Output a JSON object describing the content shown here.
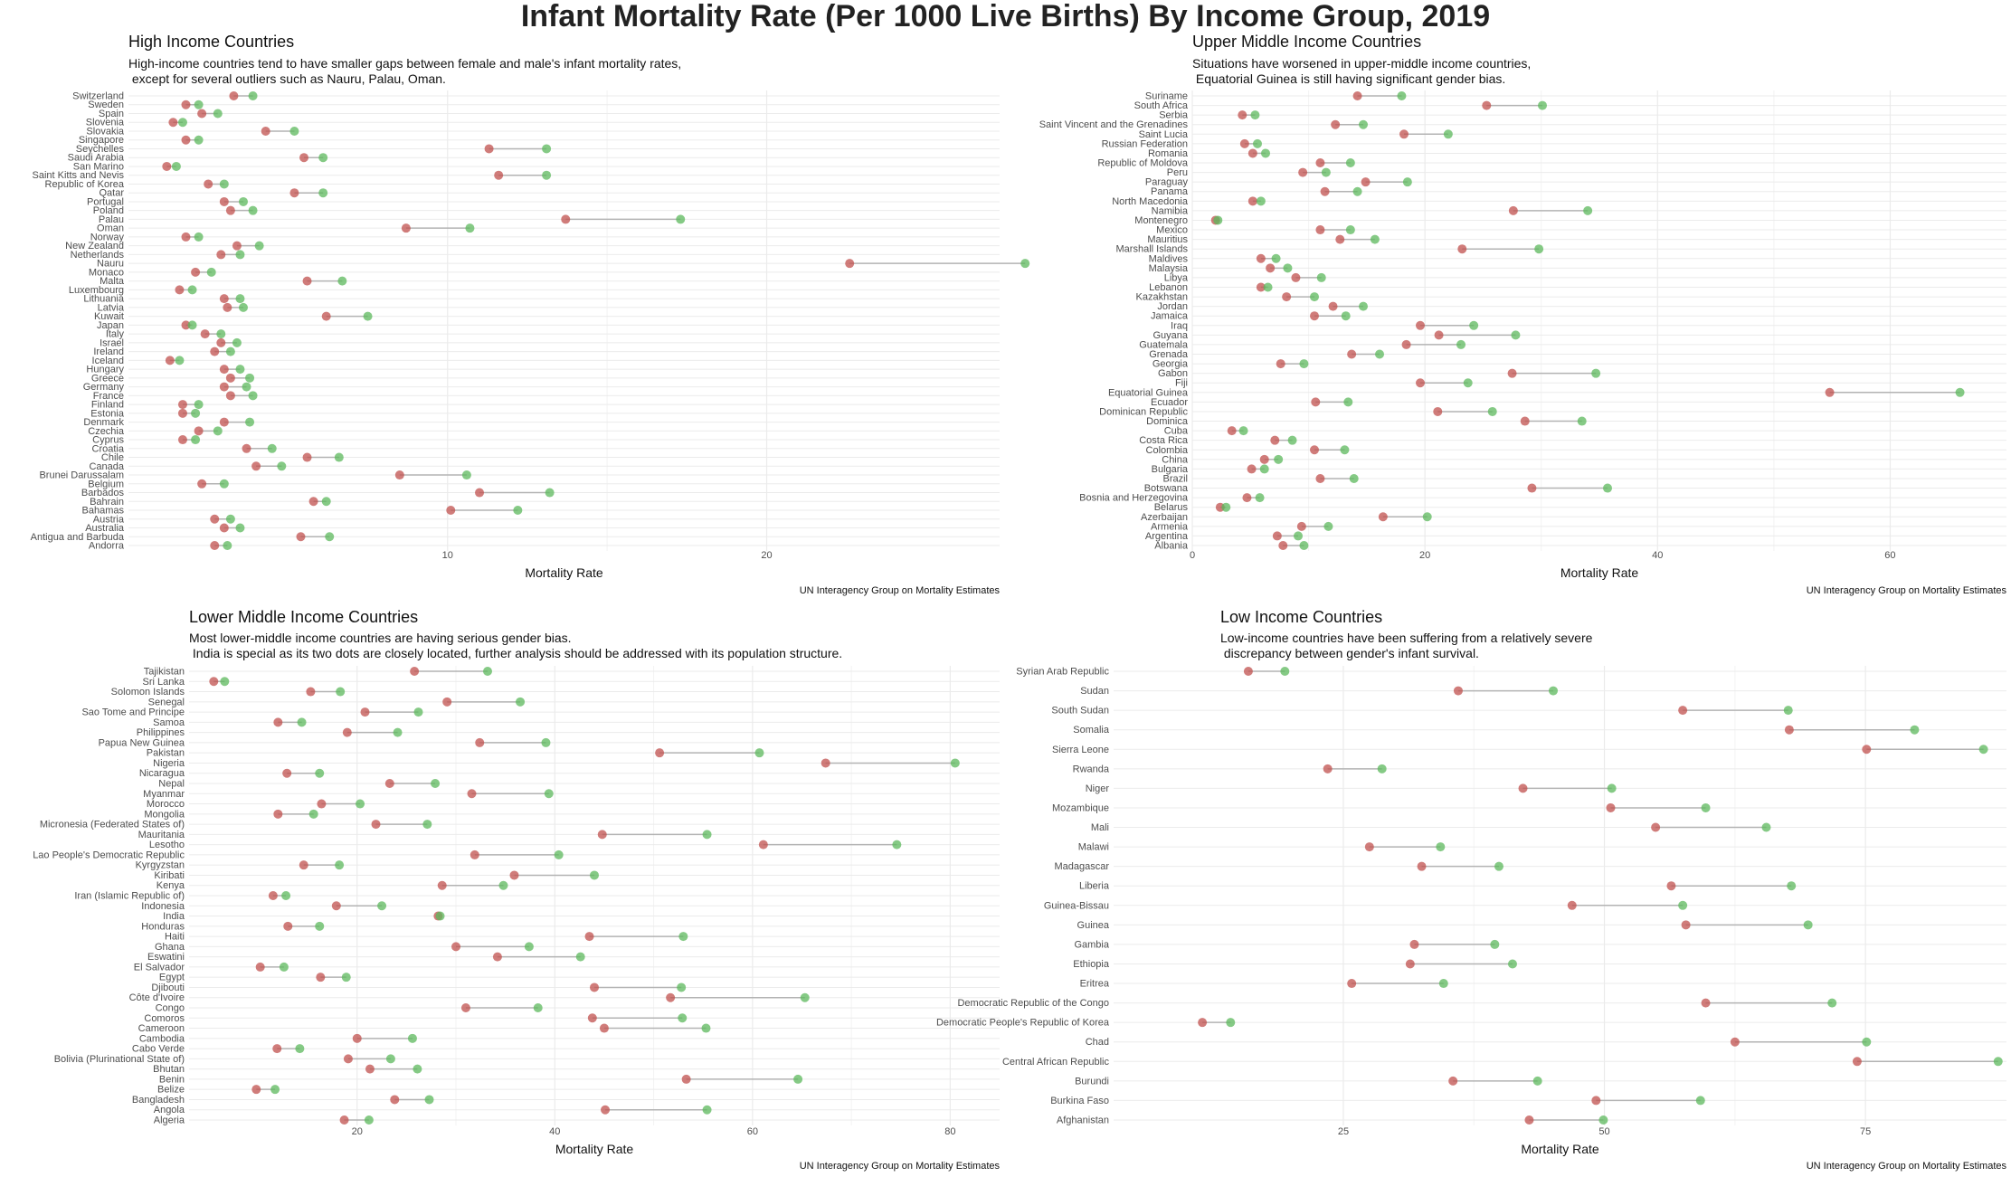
{
  "title": "Infant Mortality Rate (Per 1000 Live Births) By Income Group, 2019",
  "colors": {
    "female": "#c0504d",
    "male": "#5cb85c",
    "segment": "#b3b3b3",
    "grid": "#ebebeb"
  },
  "chart_data": [
    {
      "type": "dumbbell",
      "title": "High Income Countries",
      "subtitle": "High-income countries tend to have smaller gaps between female and male's infant mortality rates,\n except for several outliers such as Nauru, Palau, Oman.",
      "xlabel": "Mortality Rate",
      "caption": "UN Interagency Group on Mortality Estimates",
      "xlim": [
        0,
        27.3
      ],
      "xticks": [
        10,
        20
      ],
      "categories": [
        "Switzerland",
        "Sweden",
        "Spain",
        "Slovenia",
        "Slovakia",
        "Singapore",
        "Seychelles",
        "Saudi Arabia",
        "San Marino",
        "Saint Kitts and Nevis",
        "Republic of Korea",
        "Qatar",
        "Portugal",
        "Poland",
        "Palau",
        "Oman",
        "Norway",
        "New Zealand",
        "Netherlands",
        "Nauru",
        "Monaco",
        "Malta",
        "Luxembourg",
        "Lithuania",
        "Latvia",
        "Kuwait",
        "Japan",
        "Italy",
        "Israel",
        "Ireland",
        "Iceland",
        "Hungary",
        "Greece",
        "Germany",
        "France",
        "Finland",
        "Estonia",
        "Denmark",
        "Czechia",
        "Cyprus",
        "Croatia",
        "Chile",
        "Canada",
        "Brunei Darussalam",
        "Belgium",
        "Barbados",
        "Bahrain",
        "Bahamas",
        "Austria",
        "Australia",
        "Antigua and Barbuda",
        "Andorra"
      ],
      "series": [
        {
          "name": "female",
          "values": [
            3.3,
            1.8,
            2.3,
            1.4,
            4.3,
            1.8,
            11.3,
            5.5,
            1.2,
            11.6,
            2.5,
            5.2,
            3.0,
            3.2,
            13.7,
            8.7,
            1.8,
            3.4,
            2.9,
            22.6,
            2.1,
            5.6,
            1.6,
            3.0,
            3.1,
            6.2,
            1.8,
            2.4,
            2.9,
            2.7,
            1.3,
            3.0,
            3.2,
            3.0,
            3.2,
            1.7,
            1.7,
            3.0,
            2.2,
            1.7,
            3.7,
            5.6,
            4.0,
            8.5,
            2.3,
            11.0,
            5.8,
            10.1,
            2.7,
            3.0,
            5.4,
            2.7
          ]
        },
        {
          "name": "male",
          "values": [
            3.9,
            2.2,
            2.8,
            1.7,
            5.2,
            2.2,
            13.1,
            6.1,
            1.5,
            13.1,
            3.0,
            6.1,
            3.6,
            3.9,
            17.3,
            10.7,
            2.2,
            4.1,
            3.5,
            28.1,
            2.6,
            6.7,
            2.0,
            3.5,
            3.6,
            7.5,
            2.0,
            2.9,
            3.4,
            3.2,
            1.6,
            3.5,
            3.8,
            3.7,
            3.9,
            2.2,
            2.1,
            3.8,
            2.8,
            2.1,
            4.5,
            6.6,
            4.8,
            10.6,
            3.0,
            13.2,
            6.2,
            12.2,
            3.2,
            3.5,
            6.3,
            3.1
          ]
        }
      ]
    },
    {
      "type": "dumbbell",
      "title": "Upper Middle Income Countries",
      "subtitle": "Situations have worsened in upper-middle income countries,\n Equatorial Guinea is still having significant gender bias.",
      "xlabel": "Mortality Rate",
      "caption": "UN Interagency Group on Mortality Estimates",
      "xlim": [
        0,
        70
      ],
      "xticks": [
        0,
        20,
        40,
        60
      ],
      "categories": [
        "Suriname",
        "South Africa",
        "Serbia",
        "Saint Vincent and the Grenadines",
        "Saint Lucia",
        "Russian Federation",
        "Romania",
        "Republic of Moldova",
        "Peru",
        "Paraguay",
        "Panama",
        "North Macedonia",
        "Namibia",
        "Montenegro",
        "Mexico",
        "Mauritius",
        "Marshall Islands",
        "Maldives",
        "Malaysia",
        "Libya",
        "Lebanon",
        "Kazakhstan",
        "Jordan",
        "Jamaica",
        "Iraq",
        "Guyana",
        "Guatemala",
        "Grenada",
        "Georgia",
        "Gabon",
        "Fiji",
        "Equatorial Guinea",
        "Ecuador",
        "Dominican Republic",
        "Dominica",
        "Cuba",
        "Costa Rica",
        "Colombia",
        "China",
        "Bulgaria",
        "Brazil",
        "Botswana",
        "Bosnia and Herzegovina",
        "Belarus",
        "Azerbaijan",
        "Armenia",
        "Argentina",
        "Albania"
      ],
      "series": [
        {
          "name": "female",
          "values": [
            14.2,
            25.3,
            4.3,
            12.3,
            18.2,
            4.5,
            5.2,
            11.0,
            9.5,
            14.9,
            11.4,
            5.2,
            27.6,
            2.0,
            11.0,
            12.7,
            23.2,
            5.9,
            6.7,
            8.9,
            5.9,
            8.1,
            12.1,
            10.5,
            19.6,
            21.2,
            18.4,
            13.7,
            7.6,
            27.5,
            19.6,
            54.8,
            10.6,
            21.1,
            28.6,
            3.4,
            7.1,
            10.5,
            6.2,
            5.1,
            11.0,
            29.2,
            4.7,
            2.4,
            16.4,
            9.4,
            7.3,
            7.8
          ]
        },
        {
          "name": "male",
          "values": [
            18.0,
            30.1,
            5.4,
            14.7,
            22.0,
            5.6,
            6.3,
            13.6,
            11.5,
            18.5,
            14.2,
            5.9,
            34.0,
            2.2,
            13.6,
            15.7,
            29.8,
            7.2,
            8.2,
            11.1,
            6.5,
            10.5,
            14.7,
            13.2,
            24.2,
            27.8,
            23.1,
            16.1,
            9.6,
            34.7,
            23.7,
            66.0,
            13.4,
            25.8,
            33.5,
            4.4,
            8.6,
            13.1,
            7.4,
            6.2,
            13.9,
            35.7,
            5.8,
            2.9,
            20.2,
            11.7,
            9.1,
            9.6
          ]
        }
      ]
    },
    {
      "type": "dumbbell",
      "title": "Lower Middle Income Countries",
      "subtitle": "Most lower-middle income countries are having serious gender bias.\n India is special as its two dots are closely located, further analysis should be addressed with its population structure.",
      "xlabel": "Mortality Rate",
      "caption": "UN Interagency Group on Mortality Estimates",
      "xlim": [
        3,
        85
      ],
      "xticks": [
        20,
        40,
        60,
        80
      ],
      "categories": [
        "Tajikistan",
        "Sri Lanka",
        "Solomon Islands",
        "Senegal",
        "Sao Tome and Principe",
        "Samoa",
        "Philippines",
        "Papua New Guinea",
        "Pakistan",
        "Nigeria",
        "Nicaragua",
        "Nepal",
        "Myanmar",
        "Morocco",
        "Mongolia",
        "Micronesia (Federated States of)",
        "Mauritania",
        "Lesotho",
        "Lao People's Democratic Republic",
        "Kyrgyzstan",
        "Kiribati",
        "Kenya",
        "Iran (Islamic Republic of)",
        "Indonesia",
        "India",
        "Honduras",
        "Haiti",
        "Ghana",
        "Eswatini",
        "El Salvador",
        "Egypt",
        "Djibouti",
        "Côte d'Ivoire",
        "Congo",
        "Comoros",
        "Cameroon",
        "Cambodia",
        "Cabo Verde",
        "Bolivia (Plurinational State of)",
        "Bhutan",
        "Benin",
        "Belize",
        "Bangladesh",
        "Angola",
        "Algeria"
      ],
      "series": [
        {
          "name": "female",
          "values": [
            25.8,
            5.5,
            15.3,
            29.1,
            20.8,
            12.0,
            19.0,
            32.4,
            50.6,
            67.4,
            12.9,
            23.3,
            31.6,
            16.4,
            12.0,
            21.9,
            44.8,
            61.1,
            31.9,
            14.6,
            35.9,
            28.6,
            11.5,
            17.9,
            28.2,
            13.0,
            43.5,
            30.0,
            34.2,
            10.2,
            16.3,
            44.0,
            51.7,
            31.0,
            43.8,
            45.0,
            20.0,
            11.9,
            19.1,
            21.3,
            53.3,
            9.8,
            23.8,
            45.1,
            18.7
          ]
        },
        {
          "name": "male",
          "values": [
            33.2,
            6.6,
            18.3,
            36.5,
            26.2,
            14.4,
            24.1,
            39.1,
            60.7,
            80.5,
            16.2,
            27.9,
            39.4,
            20.3,
            15.6,
            27.1,
            55.4,
            74.6,
            40.4,
            18.2,
            44.0,
            34.8,
            12.8,
            22.5,
            28.4,
            16.2,
            53.0,
            37.4,
            42.6,
            12.6,
            18.9,
            52.8,
            65.3,
            38.3,
            52.9,
            55.3,
            25.6,
            14.2,
            23.4,
            26.1,
            64.6,
            11.7,
            27.3,
            55.4,
            21.2
          ]
        }
      ]
    },
    {
      "type": "dumbbell",
      "title": "Low Income Countries",
      "subtitle": "Low-income countries have been suffering from a relatively severe\n discrepancy between gender's infant survival.",
      "xlabel": "Mortality Rate",
      "caption": "UN Interagency Group on Mortality Estimates",
      "xlim": [
        3,
        88.5
      ],
      "xticks": [
        25,
        50,
        75
      ],
      "categories": [
        "Syrian Arab Republic",
        "Sudan",
        "South Sudan",
        "Somalia",
        "Sierra Leone",
        "Rwanda",
        "Niger",
        "Mozambique",
        "Mali",
        "Malawi",
        "Madagascar",
        "Liberia",
        "Guinea-Bissau",
        "Guinea",
        "Gambia",
        "Ethiopia",
        "Eritrea",
        "Democratic Republic of the Congo",
        "Democratic People's Republic of Korea",
        "Chad",
        "Central African Republic",
        "Burundi",
        "Burkina Faso",
        "Afghanistan"
      ],
      "series": [
        {
          "name": "female",
          "values": [
            15.9,
            36.0,
            57.5,
            67.7,
            75.1,
            23.5,
            42.2,
            50.6,
            54.9,
            27.5,
            32.5,
            56.4,
            46.9,
            57.8,
            31.8,
            31.4,
            25.8,
            59.7,
            11.5,
            62.5,
            74.2,
            35.5,
            49.2,
            42.8
          ]
        },
        {
          "name": "male",
          "values": [
            19.4,
            45.1,
            67.6,
            79.7,
            86.3,
            28.7,
            50.7,
            59.7,
            65.5,
            34.3,
            39.9,
            67.9,
            57.5,
            69.5,
            39.5,
            41.2,
            34.6,
            71.8,
            14.2,
            75.1,
            87.7,
            43.6,
            59.2,
            49.9
          ]
        }
      ]
    }
  ]
}
